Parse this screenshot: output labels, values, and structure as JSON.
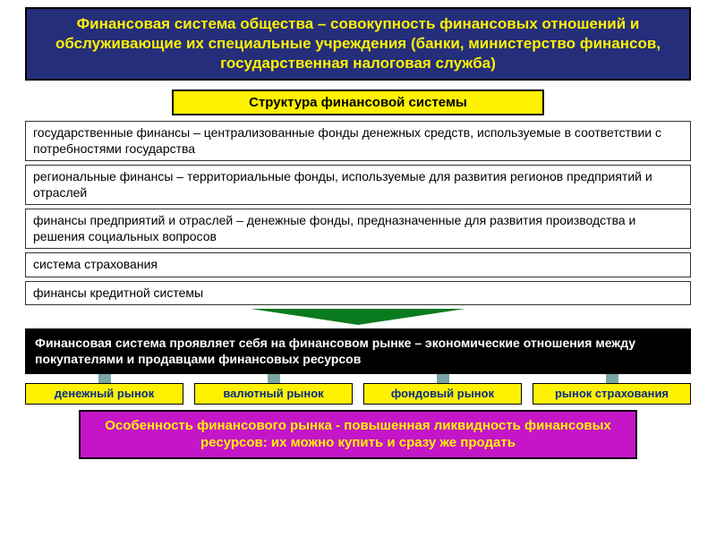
{
  "colors": {
    "headerBg": "#252e7a",
    "headerText": "#fff200",
    "headerBorder": "#000000",
    "sectionTitleBg": "#fff200",
    "sectionTitleText": "#000000",
    "sectionTitleBorder": "#000000",
    "itemText": "#000000",
    "arrowColor": "#0a7a1f",
    "blackBoxBg": "#000000",
    "blackBoxText": "#ffffff",
    "marketBg": "#fff200",
    "marketText": "#0a2d8a",
    "connectorBg": "#7aa5a5",
    "footerBg": "#c415c8",
    "footerText": "#fff200",
    "footerBorder": "#000000"
  },
  "fontSizes": {
    "header": 17,
    "sectionTitle": 15,
    "item": 14,
    "blackBox": 14,
    "market": 13,
    "footer": 15
  },
  "header": "Финансовая система общества – совокупность финансовых отношений и обслуживающие их специальные учреждения (банки, министерство финансов, государственная налоговая служба)",
  "sectionTitle": "Структура финансовой системы",
  "items": [
    "государственные финансы – централизованные фонды денежных средств, используемые в соответствии с потребностями государства",
    "региональные финансы – территориальные фонды, используемые для развития регионов предприятий и отраслей",
    "финансы предприятий и отраслей – денежные фонды, предназначенные для развития производства и решения социальных вопросов",
    "система страхования",
    "финансы кредитной системы"
  ],
  "blackBox": "Финансовая система проявляет себя на финансовом рынке – экономические отношения между покупателями и продавцами финансовых ресурсов",
  "markets": [
    "денежный рынок",
    "валютный рынок",
    "фондовый рынок",
    "рынок страхования"
  ],
  "footer": "Особенность финансового рынка - повышенная ликвидность финансовых ресурсов: их можно купить и сразу же продать"
}
